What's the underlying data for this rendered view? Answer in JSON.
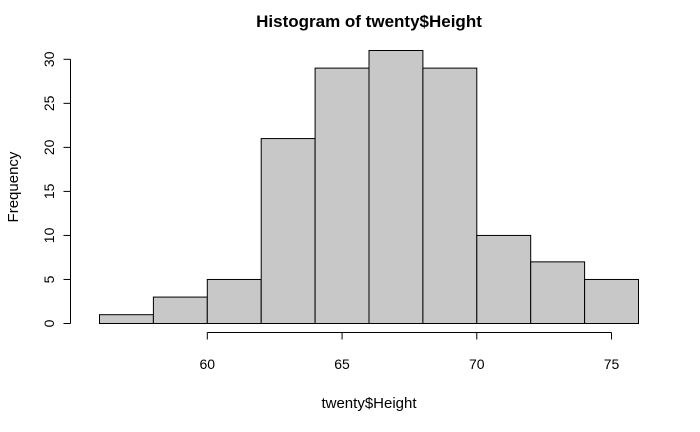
{
  "chart_data": {
    "type": "bar",
    "title": "Histogram of twenty$Height",
    "xlabel": "twenty$Height",
    "ylabel": "Frequency",
    "bins": [
      {
        "from": 56,
        "to": 58,
        "count": 1
      },
      {
        "from": 58,
        "to": 60,
        "count": 3
      },
      {
        "from": 60,
        "to": 62,
        "count": 5
      },
      {
        "from": 62,
        "to": 64,
        "count": 21
      },
      {
        "from": 64,
        "to": 66,
        "count": 29
      },
      {
        "from": 66,
        "to": 68,
        "count": 31
      },
      {
        "from": 68,
        "to": 70,
        "count": 29
      },
      {
        "from": 70,
        "to": 72,
        "count": 10
      },
      {
        "from": 72,
        "to": 74,
        "count": 7
      },
      {
        "from": 74,
        "to": 76,
        "count": 5
      }
    ],
    "xlim": [
      56,
      76
    ],
    "ylim": [
      0,
      31
    ],
    "x_ticks": [
      60,
      65,
      70,
      75
    ],
    "y_ticks": [
      0,
      5,
      10,
      15,
      20,
      25,
      30
    ],
    "bar_color": "#c8c8c8",
    "grid": false
  }
}
